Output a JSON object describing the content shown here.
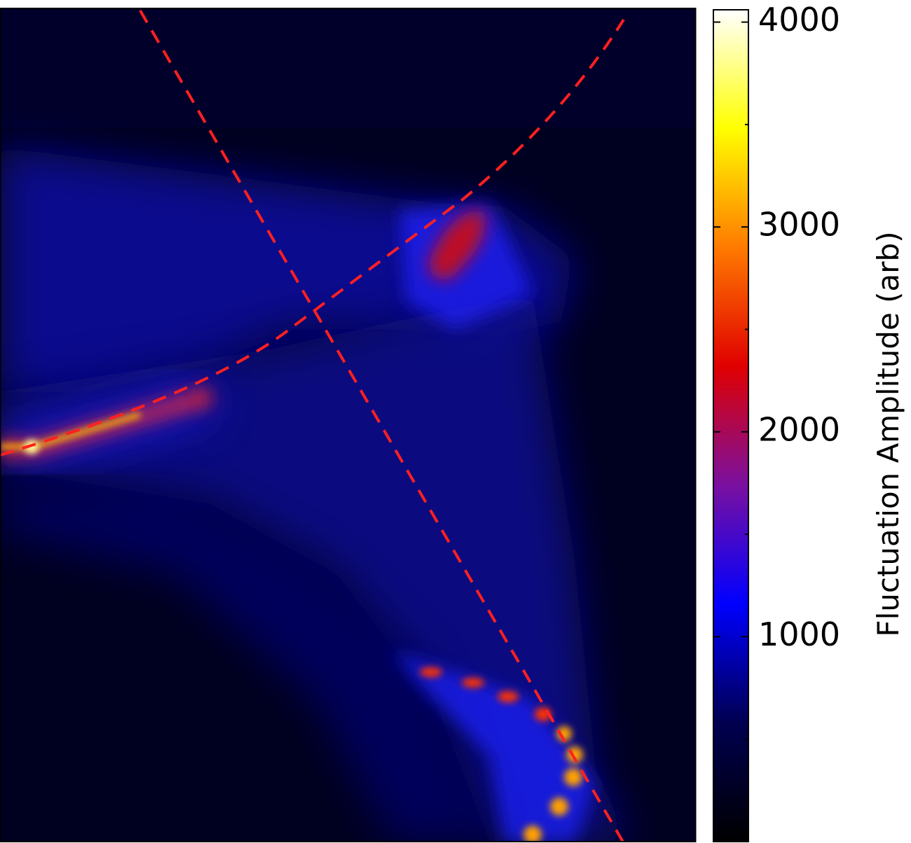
{
  "chart_data": {
    "type": "heatmap",
    "colorbar": {
      "label": "Fluctuation Amplitude (arb)",
      "lim": [
        0,
        4060
      ],
      "ticks": [
        1000,
        2000,
        3000,
        4000
      ],
      "minor_ticks": [
        500,
        1500,
        2500,
        3500
      ],
      "colormap": [
        "#000000",
        "#000050",
        "#0000ff",
        "#7a10a0",
        "#e00000",
        "#ff7a00",
        "#ffff00",
        "#ffffff"
      ]
    }
  }
}
